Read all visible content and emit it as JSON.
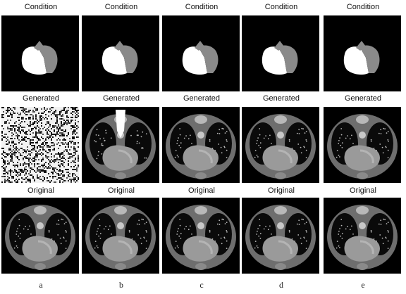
{
  "columns": [
    {
      "letter": "a",
      "condition_label": "Condition",
      "generated_label": "Generated",
      "original_label": "Original",
      "generated_kind": "noise"
    },
    {
      "letter": "b",
      "condition_label": "Condition",
      "generated_label": "Generated",
      "original_label": "Original",
      "generated_kind": "ct-artifact"
    },
    {
      "letter": "c",
      "condition_label": "Condition",
      "generated_label": "Generated",
      "original_label": "Original",
      "generated_kind": "ct"
    },
    {
      "letter": "d",
      "condition_label": "Condition",
      "generated_label": "Generated",
      "original_label": "Original",
      "generated_kind": "ct"
    },
    {
      "letter": "e",
      "condition_label": "Condition",
      "generated_label": "Generated",
      "original_label": "Original",
      "generated_kind": "ct"
    }
  ],
  "colors": {
    "background": "#ffffff",
    "panel": "#000000",
    "mask_white": "#ffffff",
    "mask_gray": "#8a8a8a",
    "ct_body": "#6e6e6e",
    "ct_heart": "#9a9a9a",
    "ct_lung": "#0a0a0a"
  }
}
